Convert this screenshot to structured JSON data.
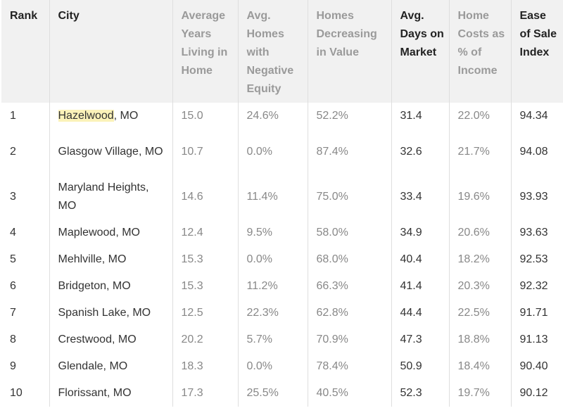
{
  "table": {
    "headers": [
      "Rank",
      "City",
      "Average Years Living in Home",
      "Avg. Homes with Negative Equity",
      "Homes Decreasing in Value",
      "Avg. Days on Market",
      "Home Costs as % of Income",
      "Ease of Sale Index"
    ],
    "highlighted_text": "Hazelwood",
    "rows": [
      {
        "rank": "1",
        "city_highlight": "Hazelwood",
        "city_rest": ", MO",
        "years": "15.0",
        "neg_equity": "24.6%",
        "decreasing": "52.2%",
        "days": "31.4",
        "costs": "22.0%",
        "index": "94.34"
      },
      {
        "rank": "2",
        "city_highlight": "",
        "city_rest": "Glasgow Village, MO",
        "years": "10.7",
        "neg_equity": "0.0%",
        "decreasing": "87.4%",
        "days": "32.6",
        "costs": "21.7%",
        "index": "94.08"
      },
      {
        "rank": "3",
        "city_highlight": "",
        "city_rest": "Maryland Heights, MO",
        "years": "14.6",
        "neg_equity": "11.4%",
        "decreasing": "75.0%",
        "days": "33.4",
        "costs": "19.6%",
        "index": "93.93"
      },
      {
        "rank": "4",
        "city_highlight": "",
        "city_rest": "Maplewood, MO",
        "years": "12.4",
        "neg_equity": "9.5%",
        "decreasing": "58.0%",
        "days": "34.9",
        "costs": "20.6%",
        "index": "93.63"
      },
      {
        "rank": "5",
        "city_highlight": "",
        "city_rest": "Mehlville, MO",
        "years": "15.3",
        "neg_equity": "0.0%",
        "decreasing": "68.0%",
        "days": "40.4",
        "costs": "18.2%",
        "index": "92.53"
      },
      {
        "rank": "6",
        "city_highlight": "",
        "city_rest": "Bridgeton, MO",
        "years": "15.3",
        "neg_equity": "11.2%",
        "decreasing": "66.3%",
        "days": "41.4",
        "costs": "20.3%",
        "index": "92.32"
      },
      {
        "rank": "7",
        "city_highlight": "",
        "city_rest": "Spanish Lake, MO",
        "years": "12.5",
        "neg_equity": "22.3%",
        "decreasing": "62.8%",
        "days": "44.4",
        "costs": "22.5%",
        "index": "91.71"
      },
      {
        "rank": "8",
        "city_highlight": "",
        "city_rest": "Crestwood, MO",
        "years": "20.2",
        "neg_equity": "5.7%",
        "decreasing": "70.9%",
        "days": "47.3",
        "costs": "18.8%",
        "index": "91.13"
      },
      {
        "rank": "9",
        "city_highlight": "",
        "city_rest": "Glendale, MO",
        "years": "18.3",
        "neg_equity": "0.0%",
        "decreasing": "78.4%",
        "days": "50.9",
        "costs": "18.4%",
        "index": "90.40"
      },
      {
        "rank": "10",
        "city_highlight": "",
        "city_rest": "Florissant, MO",
        "years": "17.3",
        "neg_equity": "25.5%",
        "decreasing": "40.5%",
        "days": "52.3",
        "costs": "19.7%",
        "index": "90.12"
      }
    ]
  },
  "colors": {
    "header_bg": "#f1f1f1",
    "highlight": "#fbf2b9",
    "muted_text": "#9a9a9a",
    "dark_text": "#222222"
  }
}
